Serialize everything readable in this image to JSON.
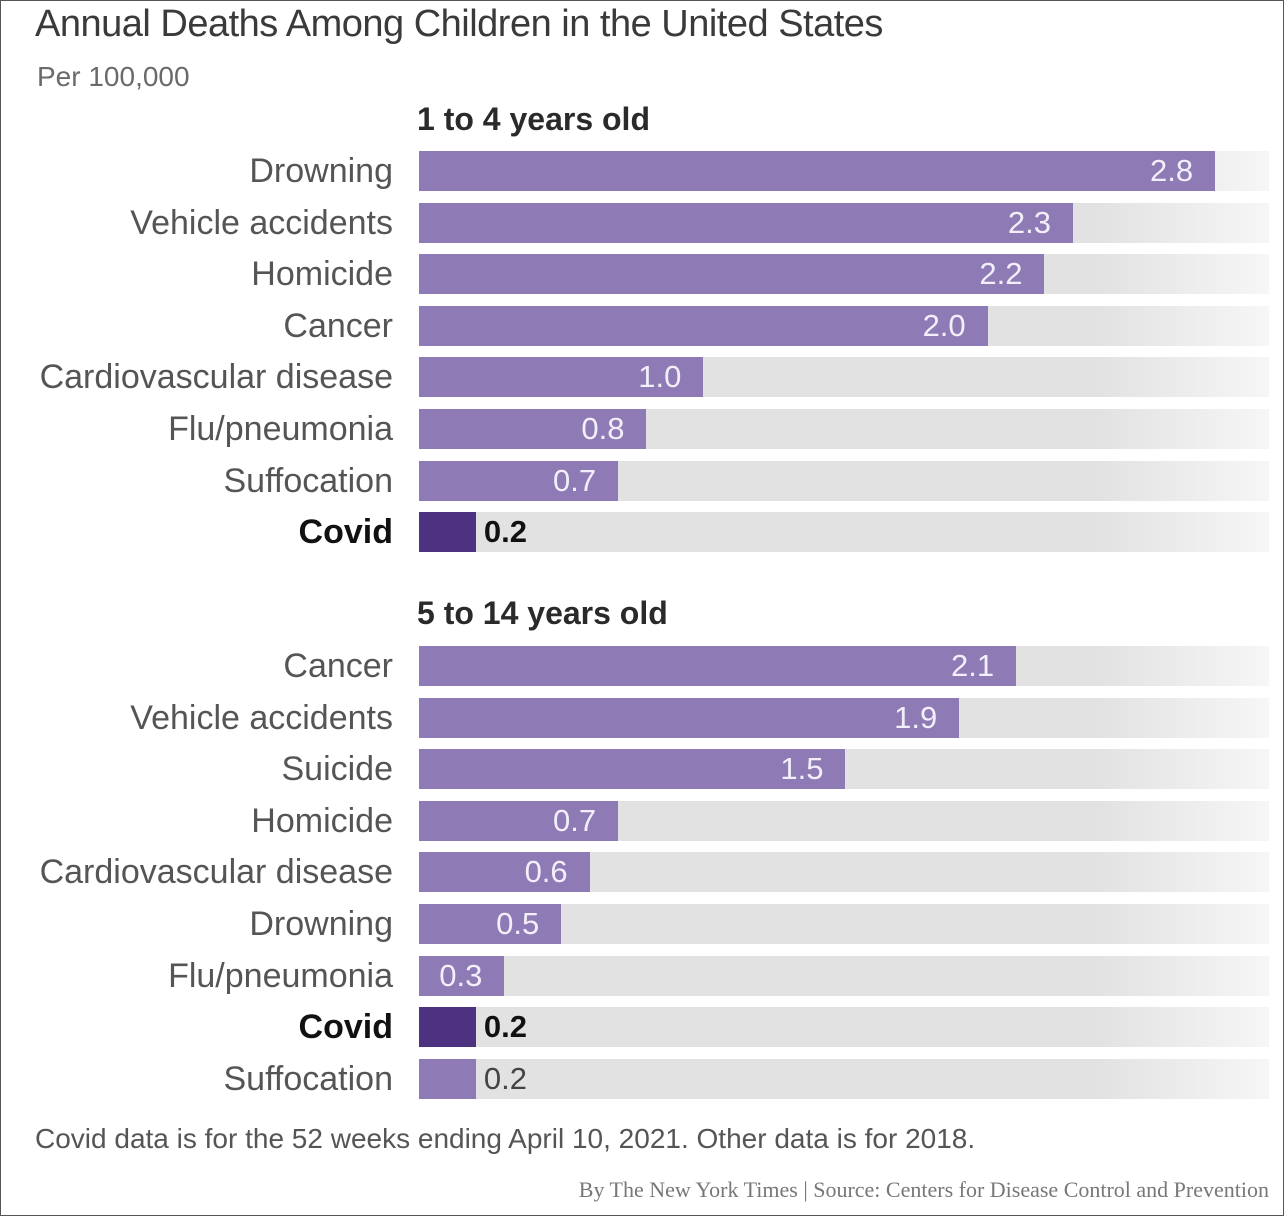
{
  "chart_data": [
    {
      "type": "bar",
      "orientation": "horizontal",
      "title": "Annual Deaths Among Children in the United States",
      "subtitle": "Per 100,000",
      "panel_title": "1 to 4 years old",
      "categories": [
        "Drowning",
        "Vehicle accidents",
        "Homicide",
        "Cancer",
        "Cardiovascular disease",
        "Flu/pneumonia",
        "Suffocation",
        "Covid"
      ],
      "values": [
        2.8,
        2.3,
        2.2,
        2.0,
        1.0,
        0.8,
        0.7,
        0.2
      ],
      "value_labels": [
        "2.8",
        "2.3",
        "2.2",
        "2.0",
        "1.0",
        "0.8",
        "0.7",
        "0.2"
      ],
      "highlight": "Covid",
      "xlim": [
        0,
        3.0
      ]
    },
    {
      "type": "bar",
      "orientation": "horizontal",
      "panel_title": "5 to 14 years old",
      "categories": [
        "Cancer",
        "Vehicle accidents",
        "Suicide",
        "Homicide",
        "Cardiovascular disease",
        "Drowning",
        "Flu/pneumonia",
        "Covid",
        "Suffocation"
      ],
      "values": [
        2.1,
        1.9,
        1.5,
        0.7,
        0.6,
        0.5,
        0.3,
        0.2,
        0.2
      ],
      "value_labels": [
        "2.1",
        "1.9",
        "1.5",
        "0.7",
        "0.6",
        "0.5",
        "0.3",
        "0.2",
        "0.2"
      ],
      "highlight": "Covid",
      "xlim": [
        0,
        3.0
      ]
    }
  ],
  "footnote": "Covid data is for the 52 weeks ending April 10, 2021. Other data is for 2018.",
  "credit": "By The New York Times | Source: Centers for Disease Control and Prevention",
  "colors": {
    "bar": "#8e7ab5",
    "highlight_bar": "#4e3282",
    "track": "#e2e2e2"
  }
}
